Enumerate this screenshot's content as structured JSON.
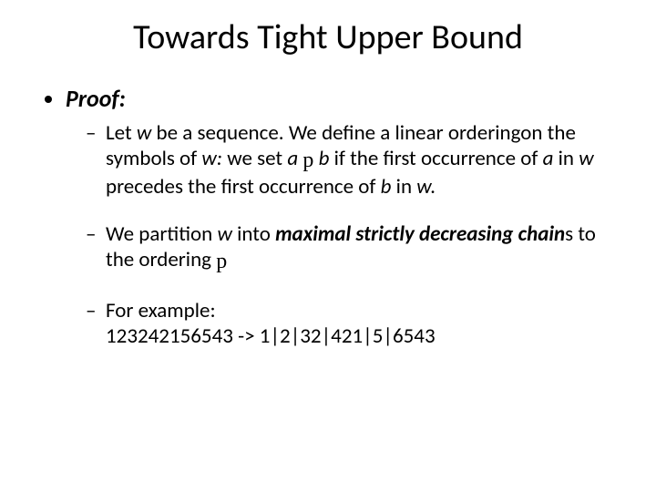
{
  "slide": {
    "title": "Towards Tight Upper Bound",
    "background_color": "#ffffff",
    "text_color": "#000000",
    "title_fontsize": 38,
    "body_fontsize": 23,
    "top_item_fontsize": 26,
    "font_family": "Calibri",
    "proof_label": "Proof:",
    "symbol": "p",
    "bullets": [
      {
        "pre": "Let ",
        "w1": "w",
        "t1": " be a sequence. We define a linear orderingon the symbols of ",
        "w2": "w:",
        "t2": " we set ",
        "a1": "a",
        "sp1": " ",
        "sym": "p",
        "sp2": "  ",
        "b1": "b",
        "t3": "  if the first occurrence of ",
        "a2": "a",
        "t4": " in ",
        "w3": "w",
        "t5": " precedes the first occurrence of ",
        "b2": "b",
        "t6": " in ",
        "w4": "w."
      },
      {
        "t1": "We partition ",
        "w1": "w",
        "t2": " into ",
        "em": "maximal strictly decreasing chain",
        "t3": "s to the ordering ",
        "sym": "p"
      },
      {
        "t1": "For example:",
        "t2": "123242156543 -> 1|2|32|421|5|6543"
      }
    ]
  }
}
